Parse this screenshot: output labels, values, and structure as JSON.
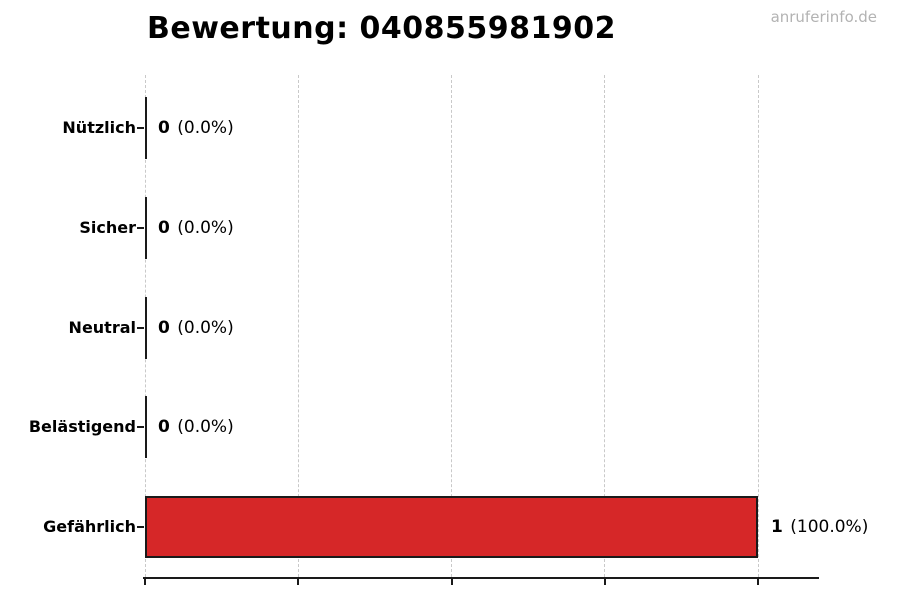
{
  "title": "Bewertung: 040855981902",
  "watermark": "anruferinfo.de",
  "chart_data": {
    "type": "bar",
    "orientation": "horizontal",
    "title": "Bewertung: 040855981902",
    "categories": [
      "Nützlich",
      "Sicher",
      "Neutral",
      "Belästigend",
      "Gefährlich"
    ],
    "values": [
      0,
      0,
      0,
      0,
      1
    ],
    "rows": [
      {
        "category": "Nützlich",
        "count": "0",
        "percent": "(0.0%)",
        "value": 0
      },
      {
        "category": "Sicher",
        "count": "0",
        "percent": "(0.0%)",
        "value": 0
      },
      {
        "category": "Neutral",
        "count": "0",
        "percent": "(0.0%)",
        "value": 0
      },
      {
        "category": "Belästigend",
        "count": "0",
        "percent": "(0.0%)",
        "value": 0
      },
      {
        "category": "Gefährlich",
        "count": "1",
        "percent": "(100.0%)",
        "value": 1
      }
    ],
    "xlabel": "",
    "ylabel": "",
    "xlim": [
      0,
      1
    ],
    "xticks": [
      0,
      0.25,
      0.5,
      0.75,
      1.0
    ],
    "xtick_labels_visible": false,
    "legend": "none",
    "grid": "vertical-dashed",
    "bar_color": "#d62728",
    "bar_border_color": "#1a1a1a",
    "grid_color": "#c9c9c9",
    "axis_color": "#1a1a1a",
    "title_color": "#000000",
    "watermark_color": "#b3b3b3"
  }
}
